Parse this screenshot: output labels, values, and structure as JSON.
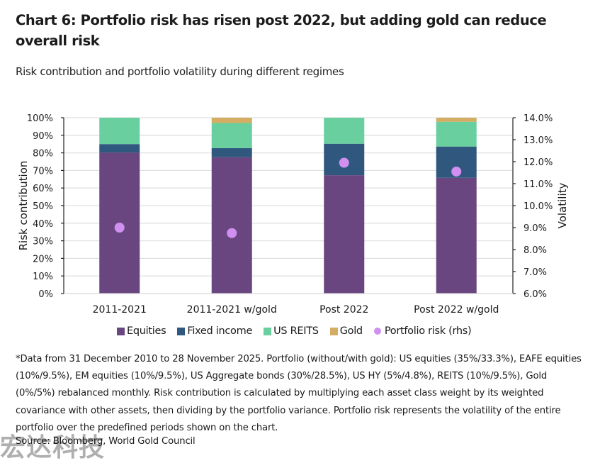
{
  "header": {
    "title": "Chart 6: Portfolio risk has risen post 2022, but adding gold can reduce overall risk",
    "subtitle": "Risk contribution and portfolio volatility during different regimes"
  },
  "colors": {
    "equities": "#6a4681",
    "fixed_income": "#30587f",
    "us_reits": "#69cf9e",
    "gold": "#d4ad62",
    "portfolio_risk": "#d18ff0",
    "gridline": "#e0e0e0",
    "axis": "#222222"
  },
  "chart_data": {
    "type": "bar",
    "stacked": true,
    "title": "Chart 6: Portfolio risk has risen post 2022, but adding gold can reduce overall risk",
    "subtitle": "Risk contribution and portfolio volatility during different regimes",
    "categories": [
      "2011-2021",
      "2011-2021 w/gold",
      "Post 2022",
      "Post 2022 w/gold"
    ],
    "series": [
      {
        "name": "Equities",
        "axis": "left",
        "kind": "bar",
        "values": [
          80.2,
          77.5,
          67.3,
          65.8
        ]
      },
      {
        "name": "Fixed income",
        "axis": "left",
        "kind": "bar",
        "values": [
          4.8,
          5.2,
          17.9,
          17.8
        ]
      },
      {
        "name": "US REITS",
        "axis": "left",
        "kind": "bar",
        "values": [
          15.0,
          14.3,
          14.8,
          14.1
        ]
      },
      {
        "name": "Gold",
        "axis": "left",
        "kind": "bar",
        "values": [
          0,
          3.0,
          0,
          2.3
        ]
      },
      {
        "name": "Portfolio risk (rhs)",
        "axis": "right",
        "kind": "scatter",
        "values": [
          9.0,
          8.75,
          11.95,
          11.55
        ]
      }
    ],
    "ylabel": "Risk contribution",
    "ylim": [
      0,
      100
    ],
    "yticks": [
      "0%",
      "10%",
      "20%",
      "30%",
      "40%",
      "50%",
      "60%",
      "70%",
      "80%",
      "90%",
      "100%"
    ],
    "y2label": "Volatility",
    "y2lim": [
      6,
      14
    ],
    "y2ticks": [
      "6.0%",
      "7.0%",
      "8.0%",
      "9.0%",
      "10.0%",
      "11.0%",
      "12.0%",
      "13.0%",
      "14.0%"
    ],
    "xlabel": "",
    "grid": true,
    "legend_position": "bottom"
  },
  "legend": [
    {
      "label": "Equities",
      "color_key": "equities",
      "shape": "square"
    },
    {
      "label": "Fixed income",
      "color_key": "fixed_income",
      "shape": "square"
    },
    {
      "label": "US REITS",
      "color_key": "us_reits",
      "shape": "square"
    },
    {
      "label": "Gold",
      "color_key": "gold",
      "shape": "square"
    },
    {
      "label": "Portfolio risk (rhs)",
      "color_key": "portfolio_risk",
      "shape": "circle"
    }
  ],
  "footnote": "*Data from 31 December 2010 to 28 November 2025. Portfolio (without/with gold): US equities (35%/33.3%), EAFE equities (10%/9.5%), EM equities (10%/9.5%), US Aggregate bonds (30%/28.5%), US HY (5%/4.8%), REITS (10%/9.5%), Gold (0%/5%) rebalanced monthly. Risk contribution is calculated by multiplying each asset class weight by its weighted covariance with other assets, then dividing by the portfolio variance. Portfolio risk represents the volatility of the entire portfolio over the predefined periods shown on the chart.",
  "source": "Source: Bloomberg, World Gold Council",
  "watermark": "宏达科技"
}
